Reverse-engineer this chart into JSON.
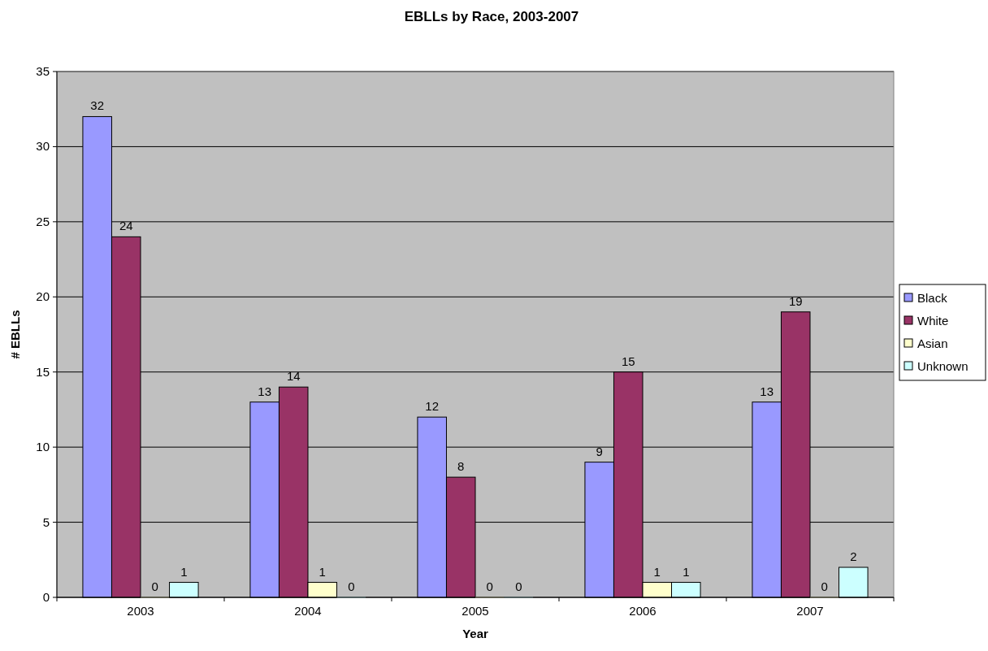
{
  "chart_data": {
    "type": "bar",
    "title": "EBLLs by Race, 2003-2007",
    "xlabel": "Year",
    "ylabel": "# EBLLs",
    "categories": [
      "2003",
      "2004",
      "2005",
      "2006",
      "2007"
    ],
    "series": [
      {
        "name": "Black",
        "color": "#9999ff",
        "values": [
          32,
          13,
          12,
          9,
          13
        ]
      },
      {
        "name": "White",
        "color": "#993366",
        "values": [
          24,
          14,
          8,
          15,
          19
        ]
      },
      {
        "name": "Asian",
        "color": "#ffffcc",
        "values": [
          0,
          1,
          0,
          1,
          0
        ]
      },
      {
        "name": "Unknown",
        "color": "#ccffff",
        "values": [
          1,
          0,
          0,
          1,
          2
        ]
      }
    ],
    "ylim": [
      0,
      35
    ],
    "yticks": [
      0,
      5,
      10,
      15,
      20,
      25,
      30,
      35
    ],
    "grid": "y",
    "legend": "right",
    "data_labels": true
  }
}
